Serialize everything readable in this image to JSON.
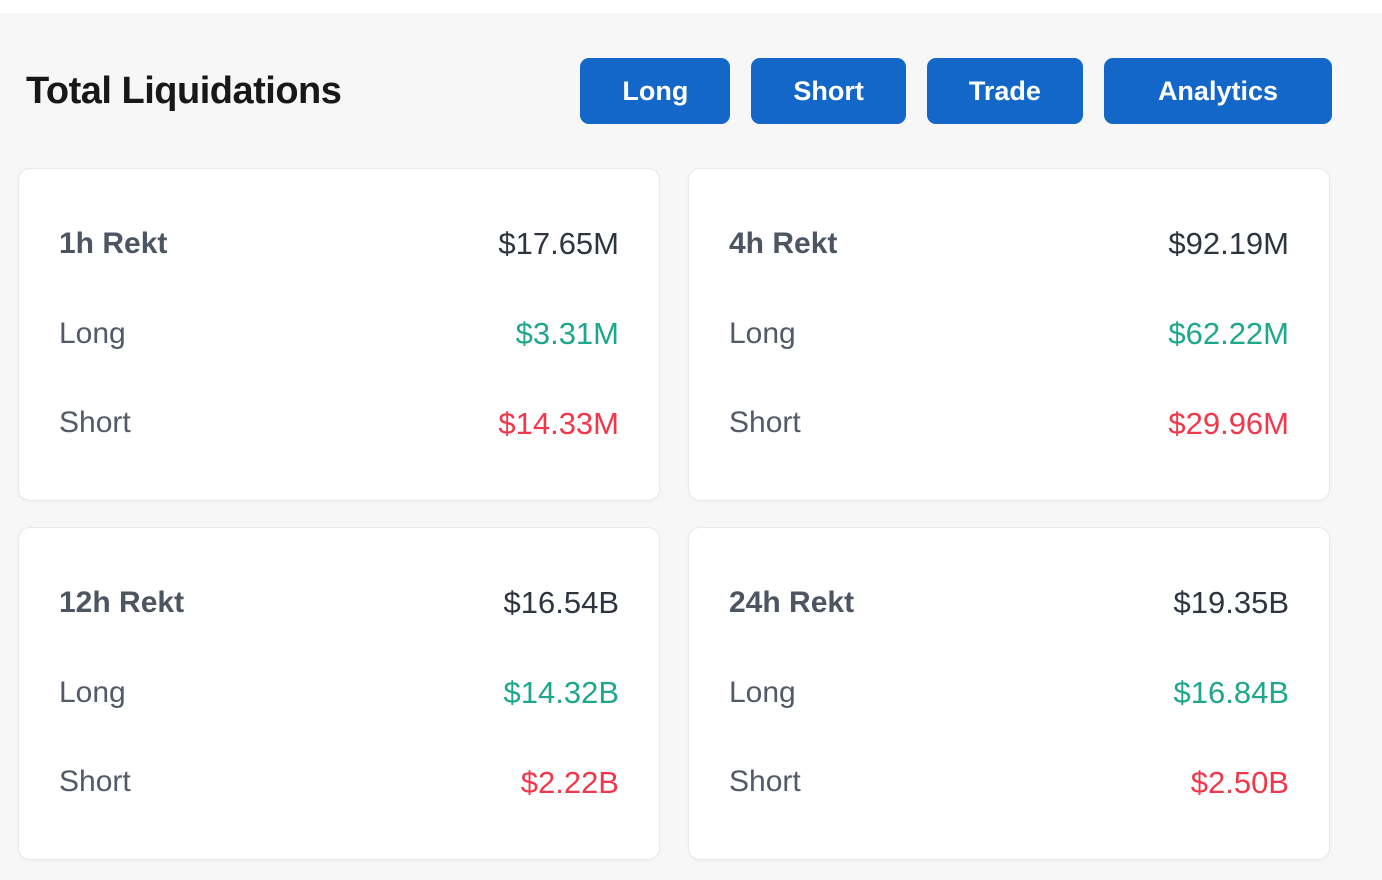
{
  "page": {
    "title": "Total Liquidations",
    "background_color": "#f7f7f8"
  },
  "toolbar": {
    "buttons": [
      {
        "label": "Long"
      },
      {
        "label": "Short"
      },
      {
        "label": "Trade"
      },
      {
        "label": "Analytics"
      }
    ],
    "button_color": "#1267c9",
    "button_text_color": "#ffffff"
  },
  "labels": {
    "long": "Long",
    "short": "Short"
  },
  "colors": {
    "long_value": "#1ea78c",
    "short_value": "#f2374a",
    "total_value": "#2f3540",
    "label_gray": "#4e5562"
  },
  "cards": [
    {
      "period": "1h Rekt",
      "total": "$17.65M",
      "long": "$3.31M",
      "short": "$14.33M"
    },
    {
      "period": "4h Rekt",
      "total": "$92.19M",
      "long": "$62.22M",
      "short": "$29.96M"
    },
    {
      "period": "12h Rekt",
      "total": "$16.54B",
      "long": "$14.32B",
      "short": "$2.22B"
    },
    {
      "period": "24h Rekt",
      "total": "$19.35B",
      "long": "$16.84B",
      "short": "$2.50B"
    }
  ]
}
